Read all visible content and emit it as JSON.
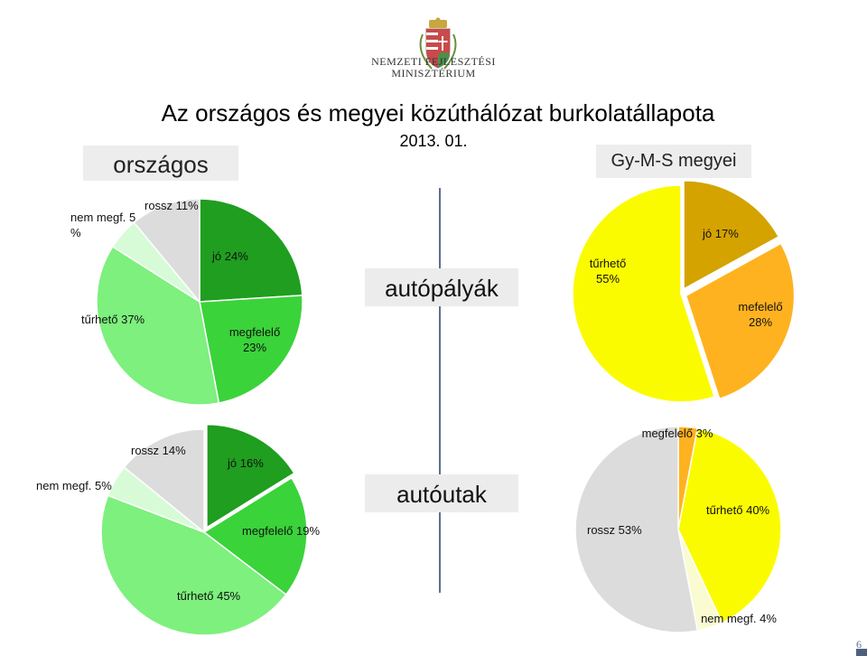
{
  "header": {
    "ministry_line1": "NEMZETI FEJLESZTÉSI",
    "ministry_line2": "MINISZTÉRIUM",
    "title": "Az országos és megyei közúthálózat  burkolatállapota",
    "date": "2013. 01."
  },
  "tabs": {
    "left": "országos",
    "right": "Gy-M-S megyei"
  },
  "categories": {
    "top": "autópályák",
    "bottom": "autóutak"
  },
  "page_number": "6",
  "colors": {
    "jo_green": "#1f9e1f",
    "megfelelo_green": "#3ad33a",
    "turheto_green": "#7df07d",
    "nem_megf_green": "#d7fbd7",
    "rossz_grey": "#dcdcdc",
    "jo_gold": "#d4a300",
    "megfelelo_orange": "#ffb21f",
    "turheto_yellow": "#fbfb00",
    "nem_megf_cream": "#fbfbd2",
    "divider": "#5b6f90"
  },
  "chart_data": [
    {
      "type": "pie",
      "id": "orszagos-autopalyak",
      "slices": [
        {
          "label": "jó 24%",
          "value": 24,
          "color": "#1f9e1f"
        },
        {
          "label": "megfelelő\n23%",
          "value": 23,
          "color": "#3ad33a"
        },
        {
          "label": "tűrhető 37%",
          "value": 37,
          "color": "#7df07d"
        },
        {
          "label": "nem megf. 5\n%",
          "value": 5,
          "color": "#d7fbd7"
        },
        {
          "label": "rossz 11%",
          "value": 11,
          "color": "#dcdcdc"
        }
      ]
    },
    {
      "type": "pie",
      "id": "gyms-autopalyak",
      "slices": [
        {
          "label": "jó 17%",
          "value": 17,
          "color": "#d4a300"
        },
        {
          "label": "mefelelő\n28%",
          "value": 28,
          "color": "#ffb21f"
        },
        {
          "label": "tűrhető\n55%",
          "value": 55,
          "color": "#fbfb00"
        }
      ]
    },
    {
      "type": "pie",
      "id": "orszagos-autoutak",
      "slices": [
        {
          "label": "jó 16%",
          "value": 16,
          "color": "#1f9e1f"
        },
        {
          "label": "megfelelő 19%",
          "value": 19,
          "color": "#3ad33a"
        },
        {
          "label": "tűrhető 45%",
          "value": 45,
          "color": "#7df07d"
        },
        {
          "label": "nem megf. 5%",
          "value": 5,
          "color": "#d7fbd7"
        },
        {
          "label": "rossz 14%",
          "value": 14,
          "color": "#dcdcdc"
        }
      ]
    },
    {
      "type": "pie",
      "id": "gyms-autoutak",
      "slices": [
        {
          "label": "megfelelő 3%",
          "value": 3,
          "color": "#ffb21f"
        },
        {
          "label": "tűrhető 40%",
          "value": 40,
          "color": "#fbfb00"
        },
        {
          "label": "nem megf. 4%",
          "value": 4,
          "color": "#fbfbd2"
        },
        {
          "label": "rossz 53%",
          "value": 53,
          "color": "#dcdcdc"
        }
      ]
    }
  ]
}
